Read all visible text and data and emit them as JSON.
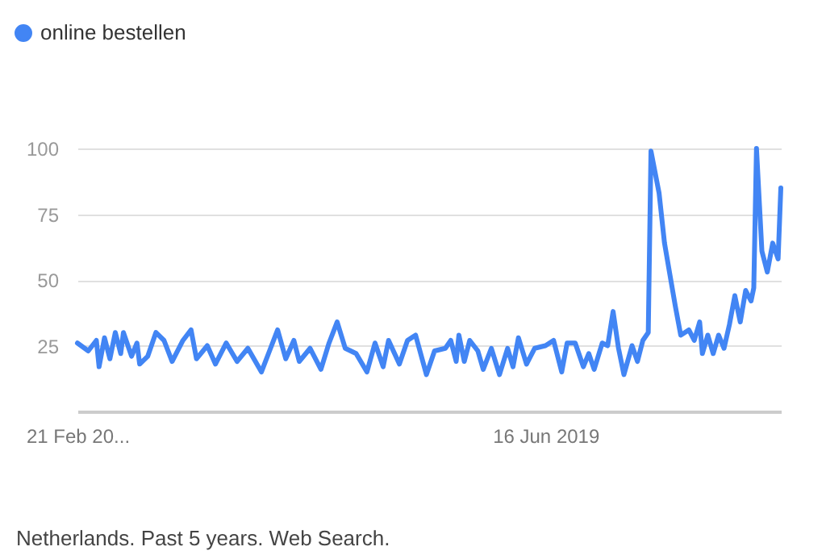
{
  "chart_data": {
    "type": "line",
    "legend": "top left",
    "grid": "y",
    "line_style": "solid",
    "marker": "none",
    "ylim": [
      0,
      100
    ],
    "yticks": [
      25,
      50,
      75,
      100
    ],
    "xlim": [
      "2016-02-21",
      "2021-02-14"
    ],
    "xticks": [
      {
        "value": "2016-02-21",
        "label": "21 Feb 20..."
      },
      {
        "value": "2019-06-16",
        "label": "16 Jun 2019"
      }
    ],
    "annotations": [
      "Netherlands. Past 5 years. Web Search."
    ],
    "x": [
      "2016-02-21",
      "2016-03-20",
      "2016-04-10",
      "2016-04-17",
      "2016-05-01",
      "2016-05-15",
      "2016-05-29",
      "2016-06-12",
      "2016-06-19",
      "2016-07-10",
      "2016-07-24",
      "2016-07-31",
      "2016-08-21",
      "2016-09-11",
      "2016-10-02",
      "2016-10-23",
      "2016-11-20",
      "2016-12-11",
      "2016-12-25",
      "2017-01-22",
      "2017-02-12",
      "2017-03-12",
      "2017-04-09",
      "2017-05-07",
      "2017-06-11",
      "2017-07-02",
      "2017-07-23",
      "2017-08-13",
      "2017-09-03",
      "2017-09-17",
      "2017-10-15",
      "2017-11-12",
      "2017-12-03",
      "2017-12-24",
      "2018-01-14",
      "2018-02-11",
      "2018-03-11",
      "2018-04-01",
      "2018-04-22",
      "2018-05-06",
      "2018-06-03",
      "2018-06-24",
      "2018-07-15",
      "2018-08-12",
      "2018-09-02",
      "2018-09-30",
      "2018-10-14",
      "2018-10-28",
      "2018-11-04",
      "2018-11-18",
      "2018-12-02",
      "2018-12-23",
      "2019-01-06",
      "2019-01-27",
      "2019-02-17",
      "2019-03-10",
      "2019-03-24",
      "2019-04-07",
      "2019-04-28",
      "2019-05-19",
      "2019-06-16",
      "2019-07-07",
      "2019-07-28",
      "2019-08-11",
      "2019-09-01",
      "2019-09-22",
      "2019-10-06",
      "2019-10-20",
      "2019-11-10",
      "2019-11-24",
      "2019-12-08",
      "2019-12-22",
      "2020-01-05",
      "2020-01-26",
      "2020-02-09",
      "2020-02-23",
      "2020-03-08",
      "2020-03-15",
      "2020-04-05",
      "2020-04-19",
      "2020-05-03",
      "2020-05-17",
      "2020-05-31",
      "2020-06-21",
      "2020-07-05",
      "2020-07-19",
      "2020-07-26",
      "2020-08-09",
      "2020-08-23",
      "2020-09-06",
      "2020-09-20",
      "2020-10-04",
      "2020-10-18",
      "2020-11-01",
      "2020-11-15",
      "2020-11-29",
      "2020-12-06",
      "2020-12-13",
      "2020-12-27",
      "2021-01-10",
      "2021-01-24",
      "2021-02-07",
      "2021-02-14"
    ],
    "series": [
      {
        "name": "online bestellen",
        "color": "#4285f4",
        "values": [
          26,
          23,
          27,
          17,
          28,
          20,
          30,
          22,
          30,
          21,
          26,
          18,
          21,
          30,
          27,
          19,
          27,
          31,
          20,
          25,
          18,
          26,
          19,
          24,
          15,
          23,
          31,
          20,
          27,
          19,
          24,
          16,
          26,
          34,
          24,
          22,
          15,
          26,
          17,
          27,
          18,
          27,
          29,
          14,
          23,
          24,
          27,
          19,
          29,
          19,
          27,
          23,
          16,
          24,
          14,
          24,
          17,
          28,
          18,
          24,
          25,
          27,
          15,
          26,
          26,
          17,
          22,
          16,
          26,
          25,
          38,
          24,
          14,
          25,
          19,
          27,
          30,
          99,
          83,
          64,
          52,
          40,
          29,
          31,
          27,
          34,
          22,
          29,
          22,
          29,
          24,
          33,
          44,
          34,
          46,
          42,
          47,
          100,
          61,
          53,
          64,
          58,
          85
        ]
      }
    ]
  }
}
